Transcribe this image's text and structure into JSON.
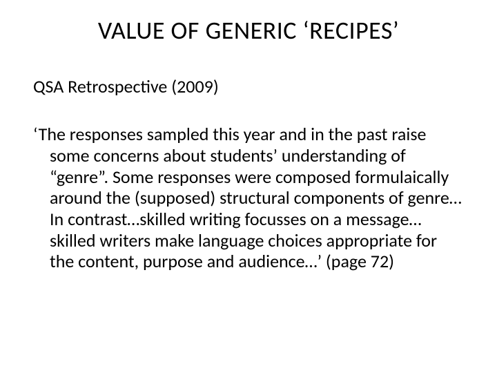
{
  "slide": {
    "title": "VALUE OF GENERIC ‘RECIPES’",
    "subtitle": "QSA Retrospective (2009)",
    "body": "‘The responses sampled this year and in the past raise some concerns about students’ understanding of “genre”. Some responses were composed formulaically around the (supposed) structural components of  genre…In contrast…skilled writing focusses on a message…skilled writers make language choices appropriate for the content, purpose and audience…’ (page 72)",
    "colors": {
      "background": "#ffffff",
      "text": "#000000"
    },
    "typography": {
      "title_fontsize": 36,
      "subtitle_fontsize": 26,
      "body_fontsize": 26,
      "font_family": "Calibri"
    }
  }
}
